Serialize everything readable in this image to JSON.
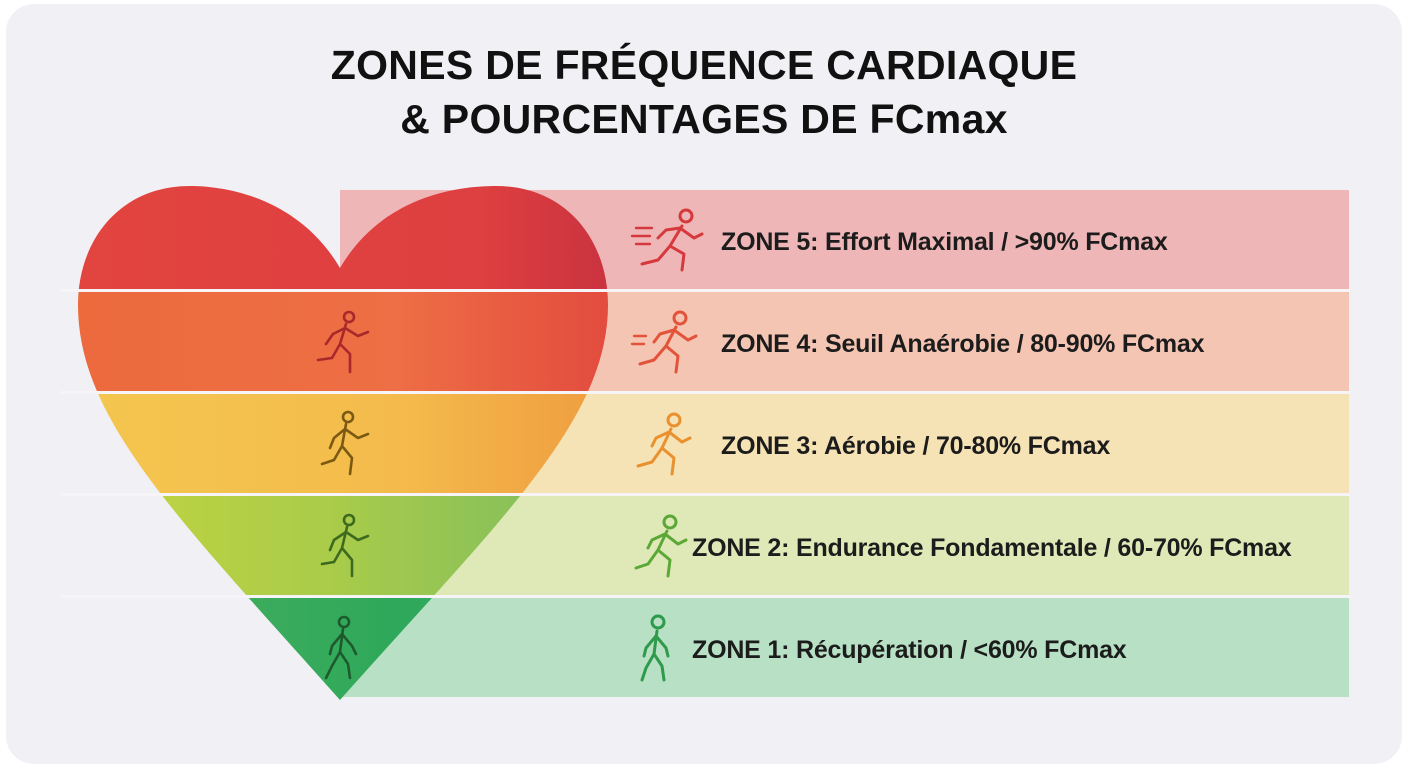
{
  "title": {
    "line1": "ZONES DE FRÉQUENCE CARDIAQUE",
    "line2": "& POURCENTAGES DE FCmax"
  },
  "zones": [
    {
      "label": "ZONE 5: Effort Maximal / >90% FCmax",
      "band_color": "#efb6b8",
      "heart_color": "#e0474a",
      "icon_color": "#d6393d",
      "icon": "sprinting-runner-icon"
    },
    {
      "label": "ZONE 4: Seuil Anaérobie / 80-90% FCmax",
      "band_color": "#f5c5b3",
      "heart_color": "#ec6a45",
      "icon_color": "#e2533a",
      "icon": "running-person-icon"
    },
    {
      "label": "ZONE 3: Aérobie / 70-80% FCmax",
      "band_color": "#f6e3b5",
      "heart_color": "#f2b44a",
      "icon_color": "#e9902f",
      "icon": "jogging-person-icon"
    },
    {
      "label": "ZONE 2: Endurance Fondamentale / 60-70% FCmax",
      "band_color": "#dfe9b8",
      "heart_color": "#a9cc4e",
      "icon_color": "#5aa836",
      "icon": "jogging-person-icon"
    },
    {
      "label": "ZONE 1: Récupération / <60% FCmax",
      "band_color": "#b7e0c4",
      "heart_color": "#3aab5c",
      "icon_color": "#2e9a4b",
      "icon": "walking-person-icon"
    }
  ]
}
